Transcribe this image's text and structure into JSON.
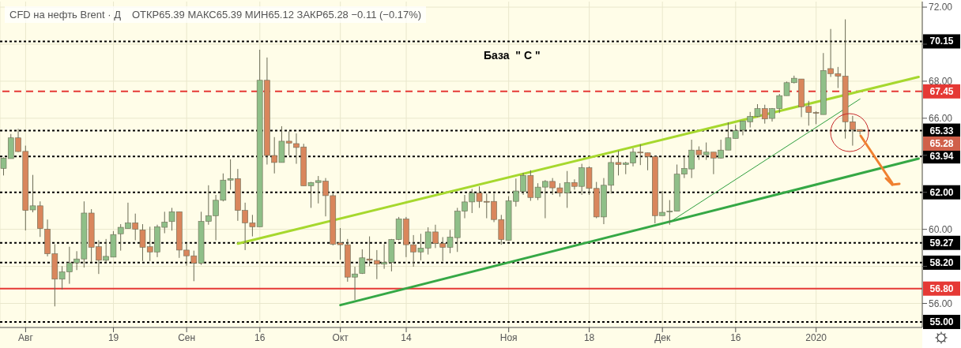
{
  "chart_data": {
    "type": "candlestick",
    "title": "CFD на нефть Brent · Д",
    "subtitle": "ОТКР65.39  МАКС65.39  МИН65.12  ЗАКР65.28  −0.11 (−0.17%)",
    "categories": [
      null,
      null,
      null,
      "Авг",
      null,
      null,
      null,
      null,
      null,
      null,
      null,
      null,
      null,
      null,
      null,
      "19",
      null,
      null,
      null,
      null,
      null,
      null,
      null,
      null,
      null,
      "Сен",
      null,
      null,
      null,
      null,
      null,
      null,
      null,
      null,
      null,
      "16",
      null,
      null,
      null,
      null,
      null,
      null,
      null,
      null,
      null,
      null,
      "Окт",
      null,
      null,
      null,
      null,
      null,
      null,
      null,
      null,
      "14",
      null,
      null,
      null,
      null,
      null,
      null,
      null,
      null,
      null,
      null,
      null,
      null,
      null,
      "Ноя",
      null,
      null,
      null,
      null,
      null,
      null,
      null,
      null,
      null,
      null,
      "18",
      null,
      null,
      null,
      null,
      null,
      null,
      null,
      null,
      null,
      "Дек",
      null,
      null,
      null,
      null,
      null,
      null,
      null,
      null,
      null,
      "16",
      null,
      null,
      null,
      null,
      null,
      null,
      null,
      null,
      null,
      null,
      "2020",
      null,
      null,
      null,
      null,
      null,
      null,
      null,
      null,
      null,
      null,
      null,
      null,
      null,
      null
    ],
    "ohlc": [
      [
        63.29,
        63.89,
        62.91,
        63.85
      ],
      [
        63.82,
        65.15,
        63.82,
        64.94
      ],
      [
        64.94,
        65.43,
        64.17,
        64.2
      ],
      [
        64.21,
        64.52,
        59.94,
        61.02
      ],
      [
        61.05,
        62.94,
        60.92,
        61.27
      ],
      [
        61.27,
        61.51,
        59.59,
        60.04
      ],
      [
        60.01,
        60.53,
        58.54,
        58.68
      ],
      [
        58.68,
        59.2,
        55.84,
        57.31
      ],
      [
        57.31,
        58.01,
        56.75,
        57.7
      ],
      [
        57.7,
        59.06,
        57.06,
        58.19
      ],
      [
        58.19,
        58.82,
        57.8,
        58.4
      ],
      [
        58.4,
        61.51,
        57.94,
        60.88
      ],
      [
        60.88,
        61.09,
        58.22,
        59.03
      ],
      [
        59.06,
        59.41,
        57.59,
        58.33
      ],
      [
        58.33,
        59.48,
        58.22,
        58.54
      ],
      [
        58.5,
        59.9,
        58.5,
        59.72
      ],
      [
        59.76,
        60.28,
        58.85,
        60.11
      ],
      [
        60.04,
        61.44,
        60.04,
        60.35
      ],
      [
        60.35,
        60.85,
        59.41,
        60.01
      ],
      [
        59.97,
        60.28,
        58.29,
        59.03
      ],
      [
        59.06,
        60.14,
        58.29,
        58.78
      ],
      [
        58.78,
        60.25,
        58.5,
        60.14
      ],
      [
        60.11,
        60.95,
        59.79,
        60.39
      ],
      [
        60.42,
        61.16,
        59.93,
        60.95
      ],
      [
        60.95,
        60.95,
        58.46,
        58.88
      ],
      [
        58.88,
        59.27,
        58.04,
        58.57
      ],
      [
        58.57,
        58.85,
        57.2,
        58.18
      ],
      [
        58.18,
        60.95,
        58.08,
        60.43
      ],
      [
        60.43,
        62.38,
        60.25,
        60.74
      ],
      [
        60.73,
        61.86,
        59.41,
        61.57
      ],
      [
        61.57,
        63.02,
        61.51,
        62.66
      ],
      [
        62.66,
        63.78,
        62.14,
        62.74
      ],
      [
        62.74,
        63.26,
        60.46,
        61.02
      ],
      [
        61.02,
        61.44,
        58.88,
        60.35
      ],
      [
        60.35,
        60.78,
        59.62,
        60.14
      ],
      [
        60.14,
        69.7,
        60.14,
        68.05
      ],
      [
        68.05,
        69.28,
        63.5,
        63.99
      ],
      [
        63.99,
        64.98,
        63.02,
        63.61
      ],
      [
        63.61,
        65.57,
        63.61,
        64.76
      ],
      [
        64.76,
        65.29,
        63.99,
        64.66
      ],
      [
        64.63,
        65.18,
        63.54,
        64.42
      ],
      [
        64.45,
        64.62,
        62.35,
        62.35
      ],
      [
        62.35,
        62.56,
        61.16,
        62.53
      ],
      [
        62.53,
        62.88,
        61.4,
        62.63
      ],
      [
        62.6,
        62.77,
        60.7,
        61.82
      ],
      [
        61.82,
        61.93,
        59.13,
        59.2
      ],
      [
        59.27,
        60.07,
        58.36,
        59.17
      ],
      [
        59.17,
        59.48,
        57.17,
        57.42
      ],
      [
        57.42,
        57.98,
        56.19,
        57.59
      ],
      [
        57.62,
        58.92,
        57.59,
        58.46
      ],
      [
        58.4,
        59.62,
        58.01,
        58.33
      ],
      [
        58.32,
        58.88,
        57.31,
        58.12
      ],
      [
        58.12,
        59.2,
        57.87,
        58.22
      ],
      [
        58.22,
        59.48,
        57.73,
        59.45
      ],
      [
        59.45,
        60.67,
        59.41,
        60.56
      ],
      [
        60.56,
        60.67,
        58.5,
        59.17
      ],
      [
        59.17,
        59.69,
        57.98,
        58.78
      ],
      [
        58.78,
        59.76,
        58.33,
        58.99
      ],
      [
        58.99,
        60.11,
        58.64,
        59.86
      ],
      [
        59.86,
        60.25,
        58.99,
        59.24
      ],
      [
        59.24,
        59.58,
        58.29,
        59.03
      ],
      [
        59.03,
        59.97,
        58.71,
        59.58
      ],
      [
        59.55,
        61.16,
        58.78,
        60.98
      ],
      [
        60.98,
        61.86,
        60.6,
        61.48
      ],
      [
        61.48,
        62.18,
        60.88,
        61.96
      ],
      [
        61.96,
        62.32,
        61.16,
        61.51
      ],
      [
        61.51,
        61.93,
        60.6,
        61.48
      ],
      [
        61.51,
        61.93,
        60.39,
        60.53
      ],
      [
        60.53,
        60.78,
        59.17,
        59.45
      ],
      [
        59.41,
        61.79,
        59.41,
        61.54
      ],
      [
        61.51,
        62.74,
        61.23,
        62.07
      ],
      [
        62.04,
        63.05,
        61.86,
        62.91
      ],
      [
        62.91,
        63.19,
        61.54,
        61.72
      ],
      [
        61.72,
        62.49,
        61.58,
        62.28
      ],
      [
        62.28,
        62.66,
        60.6,
        62.59
      ],
      [
        62.59,
        62.77,
        61.86,
        62.24
      ],
      [
        62.24,
        62.49,
        61.76,
        61.97
      ],
      [
        61.97,
        63.15,
        61.16,
        62.53
      ],
      [
        62.53,
        62.7,
        62.14,
        62.32
      ],
      [
        62.32,
        63.54,
        61.86,
        63.33
      ],
      [
        63.33,
        63.4,
        61.86,
        62.21
      ],
      [
        62.21,
        62.56,
        60.6,
        60.67
      ],
      [
        60.67,
        62.77,
        60.28,
        62.38
      ],
      [
        62.38,
        63.96,
        61.93,
        63.61
      ],
      [
        63.61,
        64.24,
        62.91,
        63.5
      ],
      [
        63.5,
        63.65,
        62.98,
        63.58
      ],
      [
        63.58,
        64.38,
        63.4,
        64.17
      ],
      [
        64.17,
        64.59,
        63.47,
        64.14
      ],
      [
        64.13,
        64.14,
        63.19,
        63.93
      ],
      [
        63.93,
        63.93,
        60.32,
        60.74
      ],
      [
        60.74,
        62.07,
        60.74,
        60.92
      ],
      [
        60.95,
        61.58,
        60.25,
        60.98
      ],
      [
        60.98,
        63.5,
        60.98,
        62.98
      ],
      [
        62.98,
        63.92,
        62.77,
        63.29
      ],
      [
        63.26,
        64.84,
        62.77,
        64.28
      ],
      [
        64.28,
        64.48,
        63.75,
        64.03
      ],
      [
        64.03,
        64.69,
        63.75,
        64.17
      ],
      [
        64.17,
        64.17,
        62.98,
        63.85
      ],
      [
        63.85,
        64.84,
        63.82,
        64.28
      ],
      [
        64.28,
        65.78,
        64.28,
        64.94
      ],
      [
        64.91,
        65.64,
        64.91,
        65.33
      ],
      [
        65.36,
        65.85,
        65.08,
        65.85
      ],
      [
        65.81,
        66.34,
        65.5,
        66.1
      ],
      [
        66.09,
        66.76,
        66.06,
        66.52
      ],
      [
        66.52,
        66.73,
        65.71,
        65.96
      ],
      [
        65.99,
        66.55,
        65.82,
        66.52
      ],
      [
        66.52,
        67.31,
        66.28,
        67.22
      ],
      [
        67.22,
        67.98,
        67.22,
        67.92
      ],
      [
        67.92,
        68.3,
        67.88,
        68.16
      ],
      [
        68.12,
        68.12,
        66.06,
        66.62
      ],
      [
        66.64,
        66.94,
        65.6,
        66.31
      ],
      [
        66.31,
        66.38,
        65.68,
        66.27
      ],
      [
        66.2,
        69.52,
        66.2,
        68.58
      ],
      [
        68.68,
        70.82,
        68.23,
        68.41
      ],
      [
        68.41,
        68.77,
        67.63,
        68.27
      ],
      [
        68.27,
        71.34,
        64.9,
        65.81
      ],
      [
        65.81,
        66.13,
        64.52,
        65.39
      ],
      [
        65.39,
        65.39,
        65.12,
        65.28
      ],
      null,
      null,
      null,
      null,
      null,
      null,
      null,
      null
    ],
    "colors": [
      "#8fbf88",
      "#8fbf88",
      "#d9865c",
      "#d9865c",
      "#8fbf88",
      "#d9865c",
      "#d9865c",
      "#d9865c",
      "#8fbf88",
      "#8fbf88",
      "#8fbf88",
      "#8fbf88",
      "#d9865c",
      "#d9865c",
      "#8fbf88",
      "#8fbf88",
      "#8fbf88",
      "#8fbf88",
      "#d9865c",
      "#d9865c",
      "#d9865c",
      "#8fbf88",
      "#8fbf88",
      "#8fbf88",
      "#d9865c",
      "#d9865c",
      "#d9865c",
      "#8fbf88",
      "#8fbf88",
      "#8fbf88",
      "#8fbf88",
      "#8fbf88",
      "#d9865c",
      "#d9865c",
      "#d9865c",
      "#8fbf88",
      "#d9865c",
      "#d9865c",
      "#8fbf88",
      "#d9865c",
      "#d9865c",
      "#d9865c",
      "#8fbf88",
      "#8fbf88",
      "#d9865c",
      "#d9865c",
      "#d9865c",
      "#d9865c",
      "#8fbf88",
      "#8fbf88",
      "#d9865c",
      "#d9865c",
      "#8fbf88",
      "#8fbf88",
      "#8fbf88",
      "#d9865c",
      "#d9865c",
      "#8fbf88",
      "#8fbf88",
      "#d9865c",
      "#d9865c",
      "#8fbf88",
      "#8fbf88",
      "#8fbf88",
      "#8fbf88",
      "#d9865c",
      "#d9865c",
      "#d9865c",
      "#d9865c",
      "#8fbf88",
      "#8fbf88",
      "#8fbf88",
      "#d9865c",
      "#8fbf88",
      "#8fbf88",
      "#d9865c",
      "#d9865c",
      "#8fbf88",
      "#d9865c",
      "#8fbf88",
      "#d9865c",
      "#d9865c",
      "#8fbf88",
      "#8fbf88",
      "#d9865c",
      "#8fbf88",
      "#8fbf88",
      "#d9865c",
      "#d9865c",
      "#d9865c",
      "#8fbf88",
      "#8fbf88",
      "#8fbf88",
      "#8fbf88",
      "#8fbf88",
      "#d9865c",
      "#8fbf88",
      "#d9865c",
      "#8fbf88",
      "#8fbf88",
      "#8fbf88",
      "#8fbf88",
      "#8fbf88",
      "#8fbf88",
      "#d9865c",
      "#8fbf88",
      "#8fbf88",
      "#8fbf88",
      "#8fbf88",
      "#d9865c",
      "#d9865c",
      "#d9865c",
      "#8fbf88",
      "#d9865c",
      "#d9865c",
      "#d9865c",
      "#d9865c",
      "#d9865c",
      null,
      null,
      null,
      null,
      null,
      null,
      null,
      null
    ],
    "series": [
      {
        "type": "line",
        "color": "#a6d82e",
        "values": [
          null,
          null,
          null,
          null,
          null,
          null,
          null,
          null,
          null,
          null,
          null,
          null,
          null,
          null,
          null,
          null,
          null,
          null,
          null,
          null,
          null,
          null,
          null,
          null,
          null,
          null,
          null,
          null,
          null,
          null,
          null,
          null,
          59.23,
          null,
          null,
          null,
          null,
          null,
          null,
          null,
          null,
          null,
          null,
          null,
          null,
          null,
          null,
          null,
          null,
          null,
          null,
          null,
          null,
          null,
          null,
          null,
          null,
          null,
          null,
          null,
          null,
          null,
          null,
          null,
          null,
          null,
          null,
          null,
          null,
          null,
          null,
          null,
          null,
          null,
          null,
          null,
          null,
          null,
          null,
          null,
          null,
          null,
          null,
          null,
          null,
          null,
          null,
          null,
          null,
          null,
          null,
          null,
          null,
          null,
          null,
          null,
          null,
          null,
          null,
          null,
          null,
          null,
          null,
          null,
          null,
          null,
          null,
          null,
          null,
          null,
          null,
          null,
          null,
          null,
          null,
          null,
          null,
          null,
          null,
          null,
          null,
          null,
          null,
          null,
          null,
          68.23
        ]
      },
      {
        "type": "line",
        "color": "#35a845",
        "values": [
          null,
          null,
          null,
          null,
          null,
          null,
          null,
          null,
          null,
          null,
          null,
          null,
          null,
          null,
          null,
          null,
          null,
          null,
          null,
          null,
          null,
          null,
          null,
          null,
          null,
          null,
          null,
          null,
          null,
          null,
          null,
          null,
          null,
          null,
          null,
          null,
          null,
          null,
          null,
          null,
          null,
          null,
          null,
          null,
          null,
          null,
          55.91,
          null,
          null,
          null,
          null,
          null,
          null,
          null,
          null,
          null,
          null,
          null,
          null,
          null,
          null,
          null,
          null,
          null,
          null,
          null,
          null,
          null,
          null,
          null,
          null,
          null,
          null,
          null,
          null,
          null,
          null,
          null,
          null,
          null,
          null,
          null,
          null,
          null,
          null,
          null,
          null,
          null,
          null,
          null,
          null,
          null,
          null,
          null,
          null,
          null,
          null,
          null,
          null,
          null,
          null,
          null,
          null,
          null,
          null,
          null,
          null,
          null,
          null,
          null,
          null,
          null,
          null,
          null,
          null,
          null,
          null,
          null,
          null,
          null,
          null,
          null,
          null,
          null,
          null,
          63.82
        ]
      },
      {
        "type": "line",
        "color": "#2e9e3e",
        "values": [
          null,
          null,
          null,
          null,
          null,
          null,
          null,
          null,
          null,
          null,
          null,
          null,
          null,
          null,
          null,
          null,
          null,
          null,
          null,
          null,
          null,
          null,
          null,
          null,
          null,
          null,
          null,
          null,
          null,
          null,
          null,
          null,
          null,
          null,
          null,
          null,
          null,
          null,
          null,
          null,
          null,
          null,
          null,
          null,
          null,
          null,
          null,
          null,
          null,
          null,
          null,
          null,
          null,
          null,
          null,
          null,
          null,
          null,
          null,
          null,
          null,
          null,
          null,
          null,
          null,
          null,
          null,
          null,
          null,
          null,
          null,
          null,
          null,
          null,
          null,
          null,
          null,
          null,
          null,
          null,
          null,
          null,
          null,
          null,
          null,
          null,
          null,
          null,
          null,
          null,
          null,
          60.39,
          null,
          null,
          null,
          null,
          null,
          null,
          null,
          null,
          null,
          null,
          null,
          null,
          null,
          null,
          null,
          null,
          null,
          null,
          null,
          null,
          null,
          null,
          null,
          null,
          null,
          67.04,
          null,
          null,
          null,
          null,
          null,
          null,
          null,
          null
        ]
      }
    ],
    "ylim": [
      54.7,
      72.3
    ],
    "yticks": [
      {
        "value": 56,
        "label": "56.00"
      },
      {
        "value": 58,
        "label": null
      },
      {
        "value": 60,
        "label": "60.00"
      },
      {
        "value": 62,
        "label": null
      },
      {
        "value": 64,
        "label": null
      },
      {
        "value": 66,
        "label": "66.00"
      },
      {
        "value": 68,
        "label": "68.00"
      },
      {
        "value": 70,
        "label": null
      },
      {
        "value": 72,
        "label": "72.00"
      }
    ],
    "ref_lines": [
      {
        "axis": "y",
        "value": 70.15,
        "label": "70.15",
        "color": "#000000",
        "line_style": "dotted"
      },
      {
        "axis": "y",
        "value": 67.45,
        "label": "67.45",
        "color": "#e53935",
        "line_style": "dashed"
      },
      {
        "axis": "y",
        "value": 65.33,
        "label": "65.33",
        "color": "#000000",
        "line_style": "dotted"
      },
      {
        "axis": "y",
        "value": 63.94,
        "label": "63.94",
        "color": "#000000",
        "line_style": "dotted"
      },
      {
        "axis": "y",
        "value": 62,
        "label": "62.00",
        "color": "#000000",
        "line_style": "dotted"
      },
      {
        "axis": "y",
        "value": 59.27,
        "label": "59.27",
        "color": "#000000",
        "line_style": "dotted"
      },
      {
        "axis": "y",
        "value": 58.2,
        "label": "58.20",
        "color": "#000000",
        "line_style": "dotted"
      },
      {
        "axis": "y",
        "value": 56.8,
        "label": "56.80",
        "color": "#e53935",
        "line_style": "solid"
      },
      {
        "axis": "y",
        "value": 55,
        "label": "55.00",
        "color": "#000000",
        "line_style": "dotted"
      }
    ],
    "annotations": [
      "База  \" С \"",
      "65.28"
    ],
    "grid": true
  }
}
